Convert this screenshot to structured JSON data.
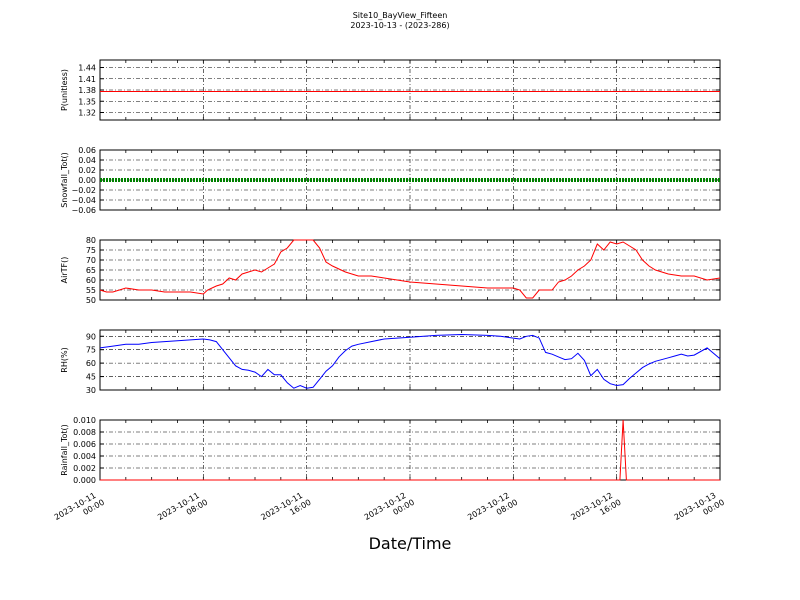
{
  "figure": {
    "title_line1": "Site10_BayView_Fifteen",
    "title_line2": "2023-10-13 - (2023-286)",
    "xlabel": "Date/Time"
  },
  "chart_data": [
    {
      "type": "line",
      "ylabel": "P(unitless)",
      "ylim": [
        1.3,
        1.46
      ],
      "yticks": [
        1.32,
        1.35,
        1.38,
        1.41,
        1.44
      ],
      "ytick_labels": [
        "1.32",
        "1.35",
        "1.38",
        "1.41",
        "1.44"
      ],
      "xlim": [
        "2023-10-11 00:00",
        "2023-10-13 00:00"
      ],
      "grid": true,
      "series": [
        {
          "color": "#ff0000",
          "x": [
            "2023-10-11 00:00",
            "2023-10-13 00:00"
          ],
          "y": [
            1.376,
            1.376
          ]
        }
      ]
    },
    {
      "type": "line",
      "ylabel": "Snowfall_Tot()",
      "ylim": [
        -0.06,
        0.06
      ],
      "yticks": [
        -0.06,
        -0.04,
        -0.02,
        0.0,
        0.02,
        0.04,
        0.06
      ],
      "ytick_labels": [
        "−0.06",
        "−0.04",
        "−0.02",
        "0.00",
        "0.02",
        "0.04",
        "0.06"
      ],
      "xlim": [
        "2023-10-11 00:00",
        "2023-10-13 00:00"
      ],
      "grid": true,
      "series": [
        {
          "color": "#008000",
          "x": [
            "2023-10-11 00:00",
            "2023-10-13 00:00"
          ],
          "y": [
            0.0,
            0.0
          ]
        }
      ]
    },
    {
      "type": "line",
      "ylabel": "AirTF()",
      "ylim": [
        50,
        80
      ],
      "yticks": [
        50,
        55,
        60,
        65,
        70,
        75,
        80
      ],
      "ytick_labels": [
        "50",
        "55",
        "60",
        "65",
        "70",
        "75",
        "80"
      ],
      "xlim": [
        "2023-10-11 00:00",
        "2023-10-13 00:00"
      ],
      "grid": true,
      "series": [
        {
          "color": "#ff0000",
          "x": [
            "2023-10-11 00:00",
            "2023-10-11 00:30",
            "2023-10-11 01:00",
            "2023-10-11 02:00",
            "2023-10-11 03:00",
            "2023-10-11 04:00",
            "2023-10-11 05:00",
            "2023-10-11 06:00",
            "2023-10-11 07:00",
            "2023-10-11 08:00",
            "2023-10-11 08:20",
            "2023-10-11 09:00",
            "2023-10-11 09:30",
            "2023-10-11 10:00",
            "2023-10-11 10:30",
            "2023-10-11 11:00",
            "2023-10-11 11:30",
            "2023-10-11 12:00",
            "2023-10-11 12:30",
            "2023-10-11 13:00",
            "2023-10-11 13:30",
            "2023-10-11 14:00",
            "2023-10-11 14:30",
            "2023-10-11 15:00",
            "2023-10-11 15:30",
            "2023-10-11 16:30",
            "2023-10-11 17:00",
            "2023-10-11 17:30",
            "2023-10-11 18:00",
            "2023-10-11 19:00",
            "2023-10-11 20:00",
            "2023-10-11 21:00",
            "2023-10-11 22:00",
            "2023-10-12 00:00",
            "2023-10-12 02:00",
            "2023-10-12 04:00",
            "2023-10-12 06:00",
            "2023-10-12 08:00",
            "2023-10-12 08:30",
            "2023-10-12 09:00",
            "2023-10-12 09:30",
            "2023-10-12 10:00",
            "2023-10-12 10:30",
            "2023-10-12 11:00",
            "2023-10-12 11:30",
            "2023-10-12 12:00",
            "2023-10-12 12:30",
            "2023-10-12 13:00",
            "2023-10-12 13:30",
            "2023-10-12 14:00",
            "2023-10-12 14:30",
            "2023-10-12 15:00",
            "2023-10-12 15:30",
            "2023-10-12 16:00",
            "2023-10-12 16:30",
            "2023-10-12 17:00",
            "2023-10-12 17:30",
            "2023-10-12 18:00",
            "2023-10-12 18:30",
            "2023-10-12 19:00",
            "2023-10-12 20:00",
            "2023-10-12 21:00",
            "2023-10-12 22:00",
            "2023-10-12 23:00",
            "2023-10-13 00:00"
          ],
          "y": [
            55,
            54,
            54,
            56,
            55,
            55,
            54,
            54,
            54,
            53,
            55,
            57,
            58,
            61,
            60,
            63,
            64,
            65,
            64,
            66,
            68,
            74,
            76,
            80,
            80,
            80,
            76,
            69,
            67,
            64,
            62,
            62,
            61,
            59,
            58,
            57,
            56,
            56,
            55,
            51,
            51,
            55,
            55,
            55,
            59,
            60,
            62,
            65,
            67,
            70,
            78,
            75,
            79,
            78,
            79,
            77,
            75,
            70,
            67,
            65,
            63,
            62,
            62,
            60,
            61
          ]
        }
      ]
    },
    {
      "type": "line",
      "ylabel": "RH(%)",
      "ylim": [
        30,
        97
      ],
      "yticks": [
        30,
        45,
        60,
        75,
        90
      ],
      "ytick_labels": [
        "30",
        "45",
        "60",
        "75",
        "90"
      ],
      "xlim": [
        "2023-10-11 00:00",
        "2023-10-13 00:00"
      ],
      "grid": true,
      "series": [
        {
          "color": "#0000ff",
          "x": [
            "2023-10-11 00:00",
            "2023-10-11 01:00",
            "2023-10-11 02:00",
            "2023-10-11 03:00",
            "2023-10-11 04:00",
            "2023-10-11 05:00",
            "2023-10-11 06:00",
            "2023-10-11 07:00",
            "2023-10-11 08:00",
            "2023-10-11 08:30",
            "2023-10-11 09:00",
            "2023-10-11 09:30",
            "2023-10-11 10:00",
            "2023-10-11 10:30",
            "2023-10-11 11:00",
            "2023-10-11 11:30",
            "2023-10-11 12:00",
            "2023-10-11 12:30",
            "2023-10-11 13:00",
            "2023-10-11 13:30",
            "2023-10-11 14:00",
            "2023-10-11 14:30",
            "2023-10-11 15:00",
            "2023-10-11 15:30",
            "2023-10-11 16:00",
            "2023-10-11 16:30",
            "2023-10-11 17:00",
            "2023-10-11 17:30",
            "2023-10-11 18:00",
            "2023-10-11 18:30",
            "2023-10-11 19:00",
            "2023-10-11 19:30",
            "2023-10-11 20:00",
            "2023-10-11 21:00",
            "2023-10-11 22:00",
            "2023-10-12 00:00",
            "2023-10-12 02:00",
            "2023-10-12 04:00",
            "2023-10-12 06:00",
            "2023-10-12 07:00",
            "2023-10-12 08:00",
            "2023-10-12 08:30",
            "2023-10-12 09:00",
            "2023-10-12 09:30",
            "2023-10-12 10:00",
            "2023-10-12 10:30",
            "2023-10-12 11:00",
            "2023-10-12 11:30",
            "2023-10-12 12:00",
            "2023-10-12 12:30",
            "2023-10-12 13:00",
            "2023-10-12 13:30",
            "2023-10-12 14:00",
            "2023-10-12 14:30",
            "2023-10-12 15:00",
            "2023-10-12 15:30",
            "2023-10-12 16:00",
            "2023-10-12 16:30",
            "2023-10-12 17:00",
            "2023-10-12 17:30",
            "2023-10-12 18:00",
            "2023-10-12 18:30",
            "2023-10-12 19:00",
            "2023-10-12 20:00",
            "2023-10-12 20:30",
            "2023-10-12 21:00",
            "2023-10-12 21:30",
            "2023-10-12 22:00",
            "2023-10-12 23:00",
            "2023-10-13 00:00"
          ],
          "y": [
            77,
            79,
            81,
            81,
            83,
            84,
            85,
            86,
            87,
            86,
            84,
            75,
            66,
            57,
            53,
            52,
            50,
            45,
            53,
            47,
            47,
            38,
            32,
            35,
            32,
            33,
            42,
            51,
            57,
            67,
            74,
            79,
            81,
            84,
            87,
            89,
            91,
            92,
            91,
            90,
            88,
            87,
            90,
            91,
            88,
            72,
            70,
            67,
            64,
            65,
            71,
            63,
            46,
            53,
            42,
            37,
            35,
            36,
            43,
            49,
            55,
            59,
            62,
            66,
            68,
            70,
            68,
            69,
            77,
            65
          ]
        }
      ]
    },
    {
      "type": "line",
      "ylabel": "Rainfall_Tot()",
      "ylim": [
        0.0,
        0.01
      ],
      "yticks": [
        0.0,
        0.002,
        0.004,
        0.006,
        0.008,
        0.01
      ],
      "ytick_labels": [
        "0.000",
        "0.002",
        "0.004",
        "0.006",
        "0.008",
        "0.010"
      ],
      "xlim": [
        "2023-10-11 00:00",
        "2023-10-13 00:00"
      ],
      "xticks": [
        "2023-10-11 00:00",
        "2023-10-11 08:00",
        "2023-10-11 16:00",
        "2023-10-12 00:00",
        "2023-10-12 08:00",
        "2023-10-12 16:00",
        "2023-10-13 00:00"
      ],
      "xtick_labels": [
        [
          "2023-10-11",
          "00:00"
        ],
        [
          "2023-10-11",
          "08:00"
        ],
        [
          "2023-10-11",
          "16:00"
        ],
        [
          "2023-10-12",
          "00:00"
        ],
        [
          "2023-10-12",
          "08:00"
        ],
        [
          "2023-10-12",
          "16:00"
        ],
        [
          "2023-10-13",
          "00:00"
        ]
      ],
      "grid": true,
      "series": [
        {
          "color": "#ff0000",
          "x": [
            "2023-10-11 00:00",
            "2023-10-12 16:15",
            "2023-10-12 16:30",
            "2023-10-12 16:45",
            "2023-10-13 00:00"
          ],
          "y": [
            0.0,
            0.0,
            0.01,
            0.0,
            0.0
          ]
        }
      ]
    }
  ]
}
